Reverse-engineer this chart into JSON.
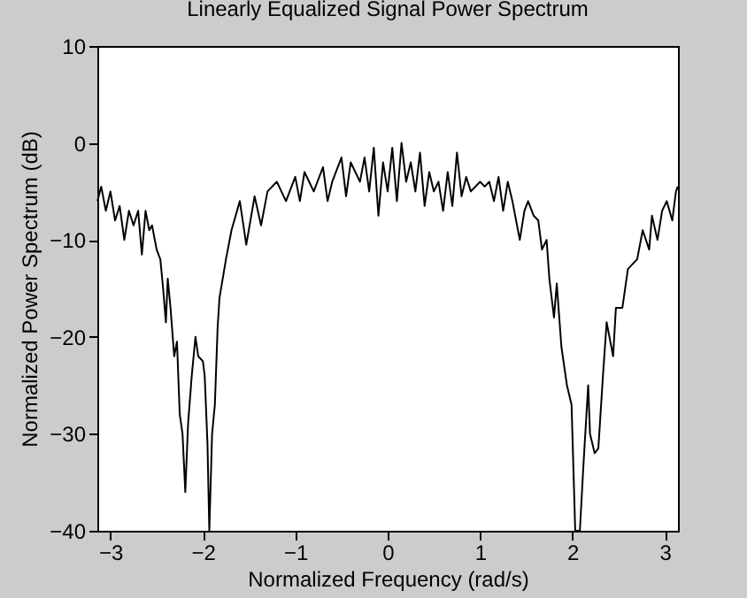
{
  "chart_data": {
    "type": "line",
    "title": "Linearly Equalized Signal Power Spectrum",
    "xlabel": "Normalized Frequency (rad/s)",
    "ylabel": "Normalized Power Spectrum (dB)",
    "x": [
      -3.14,
      -3.1,
      -3.05,
      -3.0,
      -2.95,
      -2.9,
      -2.85,
      -2.8,
      -2.75,
      -2.7,
      -2.66,
      -2.62,
      -2.58,
      -2.55,
      -2.5,
      -2.46,
      -2.43,
      -2.4,
      -2.38,
      -2.35,
      -2.31,
      -2.28,
      -2.25,
      -2.22,
      -2.19,
      -2.16,
      -2.12,
      -2.08,
      -2.05,
      -2.0,
      -1.98,
      -1.95,
      -1.93,
      -1.9,
      -1.87,
      -1.84,
      -1.82,
      -1.75,
      -1.69,
      -1.6,
      -1.53,
      -1.44,
      -1.37,
      -1.3,
      -1.2,
      -1.1,
      -1.0,
      -0.95,
      -0.9,
      -0.8,
      -0.7,
      -0.65,
      -0.6,
      -0.5,
      -0.45,
      -0.4,
      -0.3,
      -0.25,
      -0.2,
      -0.15,
      -0.1,
      -0.05,
      0,
      0.05,
      0.1,
      0.15,
      0.2,
      0.25,
      0.3,
      0.35,
      0.4,
      0.45,
      0.5,
      0.55,
      0.6,
      0.65,
      0.7,
      0.75,
      0.8,
      0.85,
      0.9,
      1.0,
      1.05,
      1.1,
      1.15,
      1.2,
      1.25,
      1.3,
      1.35,
      1.43,
      1.48,
      1.52,
      1.58,
      1.63,
      1.67,
      1.72,
      1.75,
      1.8,
      1.83,
      1.88,
      1.94,
      1.99,
      2.03,
      2.08,
      2.12,
      2.17,
      2.19,
      2.24,
      2.28,
      2.33,
      2.37,
      2.44,
      2.47,
      2.54,
      2.6,
      2.7,
      2.76,
      2.83,
      2.86,
      2.92,
      2.97,
      3.02,
      3.08,
      3.12,
      3.14
    ],
    "series": [
      {
        "color": "#000000",
        "values": [
          -6,
          -4.5,
          -7,
          -5,
          -8,
          -6.5,
          -10,
          -7,
          -8.5,
          -7,
          -11.5,
          -7,
          -9,
          -8.5,
          -11,
          -12,
          -15,
          -18.5,
          -14,
          -17,
          -22,
          -20.5,
          -28,
          -30,
          -36,
          -29,
          -24,
          -20,
          -22,
          -22.5,
          -24,
          -31,
          -40,
          -30,
          -27,
          -19,
          -16,
          -12,
          -9,
          -6,
          -10.5,
          -5.5,
          -8.5,
          -5,
          -4,
          -6,
          -3.5,
          -6,
          -3,
          -5,
          -2.5,
          -6,
          -4,
          -1.5,
          -5.5,
          -2,
          -4,
          -1.5,
          -5,
          -0.5,
          -7.5,
          -2,
          -5,
          -0.5,
          -6,
          0,
          -4,
          -2,
          -5,
          -1,
          -6.5,
          -3,
          -5,
          -4,
          -7,
          -3,
          -6.5,
          -1,
          -5.5,
          -3.5,
          -5,
          -4,
          -4.5,
          -4,
          -6,
          -3.5,
          -7,
          -4,
          -6,
          -10,
          -7,
          -6,
          -7.5,
          -8,
          -11,
          -10,
          -14,
          -18,
          -14.5,
          -21,
          -25,
          -27,
          -40,
          -40,
          -33,
          -25,
          -30,
          -32,
          -31.5,
          -24,
          -18.5,
          -22,
          -17,
          -17,
          -13,
          -12,
          -9,
          -11,
          -7.5,
          -10,
          -7,
          -6,
          -8,
          -5,
          -4.5
        ]
      }
    ],
    "xlim": [
      -3.1416,
      3.1416
    ],
    "xticks": [
      -3,
      -2,
      -1,
      0,
      1,
      2,
      3
    ],
    "ylim": [
      -40,
      10
    ],
    "yticks": [
      -40,
      -30,
      -20,
      -10,
      0,
      10
    ],
    "grid": false,
    "marker": "none",
    "line_style": "solid"
  }
}
